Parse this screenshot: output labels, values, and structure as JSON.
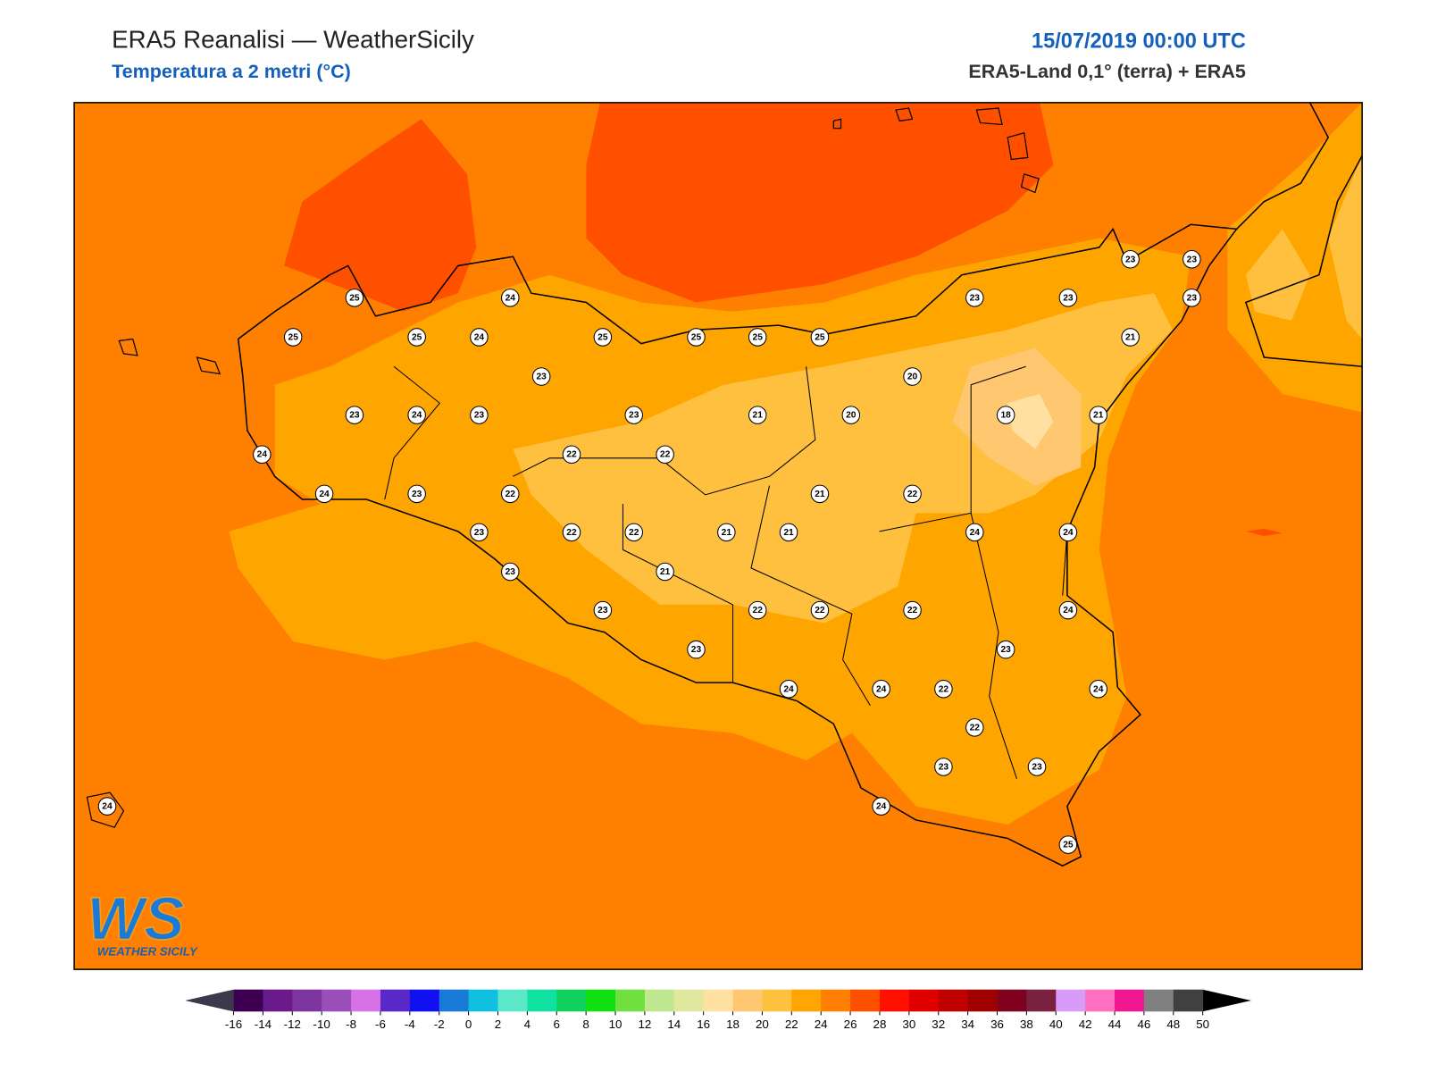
{
  "header": {
    "title": "ERA5 Reanalisi — WeatherSicily",
    "subtitle": "Temperatura a 2 metri (°C)",
    "datetime": "15/07/2019 00:00 UTC",
    "source": "ERA5-Land 0,1° (terra) + ERA5"
  },
  "stations": [
    25,
    24,
    25,
    25,
    24,
    25,
    25,
    25,
    25,
    23,
    23,
    23,
    23,
    23,
    21,
    23,
    20,
    23,
    24,
    23,
    23,
    21,
    20,
    18,
    21,
    24,
    22,
    22,
    24,
    23,
    22,
    21,
    22,
    23,
    22,
    22,
    21,
    21,
    24,
    24,
    23,
    21,
    23,
    22,
    22,
    22,
    24,
    23,
    23,
    24,
    24,
    22,
    24,
    22,
    23,
    23,
    24,
    24,
    25
  ],
  "colorbar": {
    "ticks": [
      -16,
      -14,
      -12,
      -10,
      -8,
      -6,
      -4,
      -2,
      0,
      2,
      4,
      6,
      8,
      10,
      12,
      14,
      16,
      18,
      20,
      22,
      24,
      26,
      28,
      30,
      32,
      34,
      36,
      38,
      40,
      42,
      44,
      46,
      48,
      50
    ],
    "under_color": "#3a3a4a",
    "over_color": "#000000",
    "colors": [
      "#3d0050",
      "#6a1a8a",
      "#7e35a0",
      "#9a4fb8",
      "#d870e8",
      "#5a28c8",
      "#1010f0",
      "#1a7ad8",
      "#10c0e0",
      "#5ae8c8",
      "#10e0a0",
      "#10d060",
      "#10e010",
      "#70e040",
      "#c0e890",
      "#e0e8a0",
      "#ffe0a0",
      "#ffc870",
      "#ffc040",
      "#ffa500",
      "#ff8000",
      "#ff5000",
      "#ff1000",
      "#e00000",
      "#c00000",
      "#a00000",
      "#800020",
      "#7a2040",
      "#d89cf8",
      "#ff70c0",
      "#f01890",
      "#808080",
      "#404040"
    ]
  },
  "logo": {
    "mark": "WS",
    "caption": "WEATHER SICILY"
  }
}
